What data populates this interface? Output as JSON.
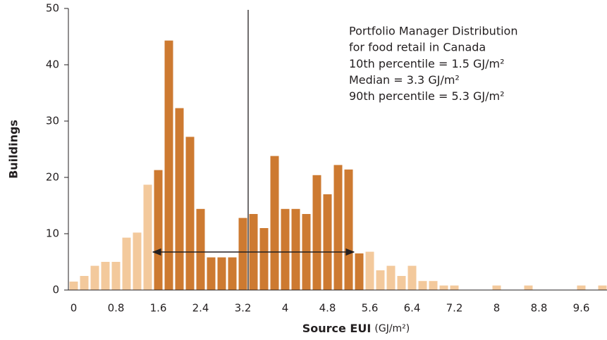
{
  "chart_data": {
    "type": "bar",
    "ylabel": "Buildings",
    "xlabel": {
      "name": "Source EUI",
      "unit": "(GJ/m²)"
    },
    "categories": [
      "0",
      null,
      null,
      null,
      "0.8",
      null,
      null,
      null,
      "1.6",
      null,
      null,
      null,
      "2.4",
      null,
      null,
      null,
      "3.2",
      null,
      null,
      null,
      "4",
      null,
      null,
      null,
      "4.8",
      null,
      null,
      null,
      "5.6",
      null,
      null,
      null,
      "6.4",
      null,
      null,
      null,
      "7.2",
      null,
      null,
      null,
      "8",
      null,
      null,
      null,
      "8.8",
      null,
      null,
      null,
      "9.6",
      null,
      null
    ],
    "values": [
      1.5,
      2.5,
      4.3,
      5,
      5,
      9.3,
      10.2,
      18.7,
      21.3,
      44.3,
      32.3,
      27.2,
      14.4,
      5.8,
      5.8,
      5.8,
      12.8,
      13.5,
      11,
      23.8,
      14.4,
      14.4,
      13.5,
      20.4,
      17,
      22.2,
      21.4,
      6.5,
      6.8,
      3.5,
      4.3,
      2.5,
      4.3,
      1.6,
      1.6,
      0.8,
      0.8,
      0,
      0,
      0,
      0.8,
      0,
      0,
      0.8,
      0,
      0,
      0,
      0,
      0.8,
      0,
      0.8
    ],
    "colors": [
      "#f3c99c",
      "#f3c99c",
      "#f3c99c",
      "#f3c99c",
      "#f3c99c",
      "#f3c99c",
      "#f3c99c",
      "#f3c99c",
      "#cd7a31",
      "#cd7a31",
      "#cd7a31",
      "#cd7a31",
      "#cd7a31",
      "#cd7a31",
      "#cd7a31",
      "#cd7a31",
      "#cd7a31",
      "#cd7a31",
      "#cd7a31",
      "#cd7a31",
      "#cd7a31",
      "#cd7a31",
      "#cd7a31",
      "#cd7a31",
      "#cd7a31",
      "#cd7a31",
      "#cd7a31",
      "#cd7a31",
      "#f3c99c",
      "#f3c99c",
      "#f3c99c",
      "#f3c99c",
      "#f3c99c",
      "#f3c99c",
      "#f3c99c",
      "#f3c99c",
      "#f3c99c",
      "#f3c99c",
      "#f3c99c",
      "#f3c99c",
      "#f3c99c",
      "#f3c99c",
      "#f3c99c",
      "#f3c99c",
      "#f3c99c",
      "#f3c99c",
      "#f3c99c",
      "#f3c99c",
      "#f3c99c",
      "#f3c99c",
      "#f3c99c"
    ],
    "bin_width": 0.2,
    "ylim": [
      0,
      50
    ],
    "yticks": [
      0,
      10,
      20,
      30,
      40,
      50
    ],
    "annotation": {
      "lines": [
        "Portfolio Manager Distribution",
        "for food retail in Canada"
      ],
      "stats": [
        {
          "label": "10th percentile =",
          "value": 1.5,
          "unit": "GJ/m²"
        },
        {
          "label": "Median =",
          "value": 3.3,
          "unit": "GJ/m²"
        },
        {
          "label": "90th percentile =",
          "value": 5.3,
          "unit": "GJ/m²"
        }
      ]
    }
  }
}
